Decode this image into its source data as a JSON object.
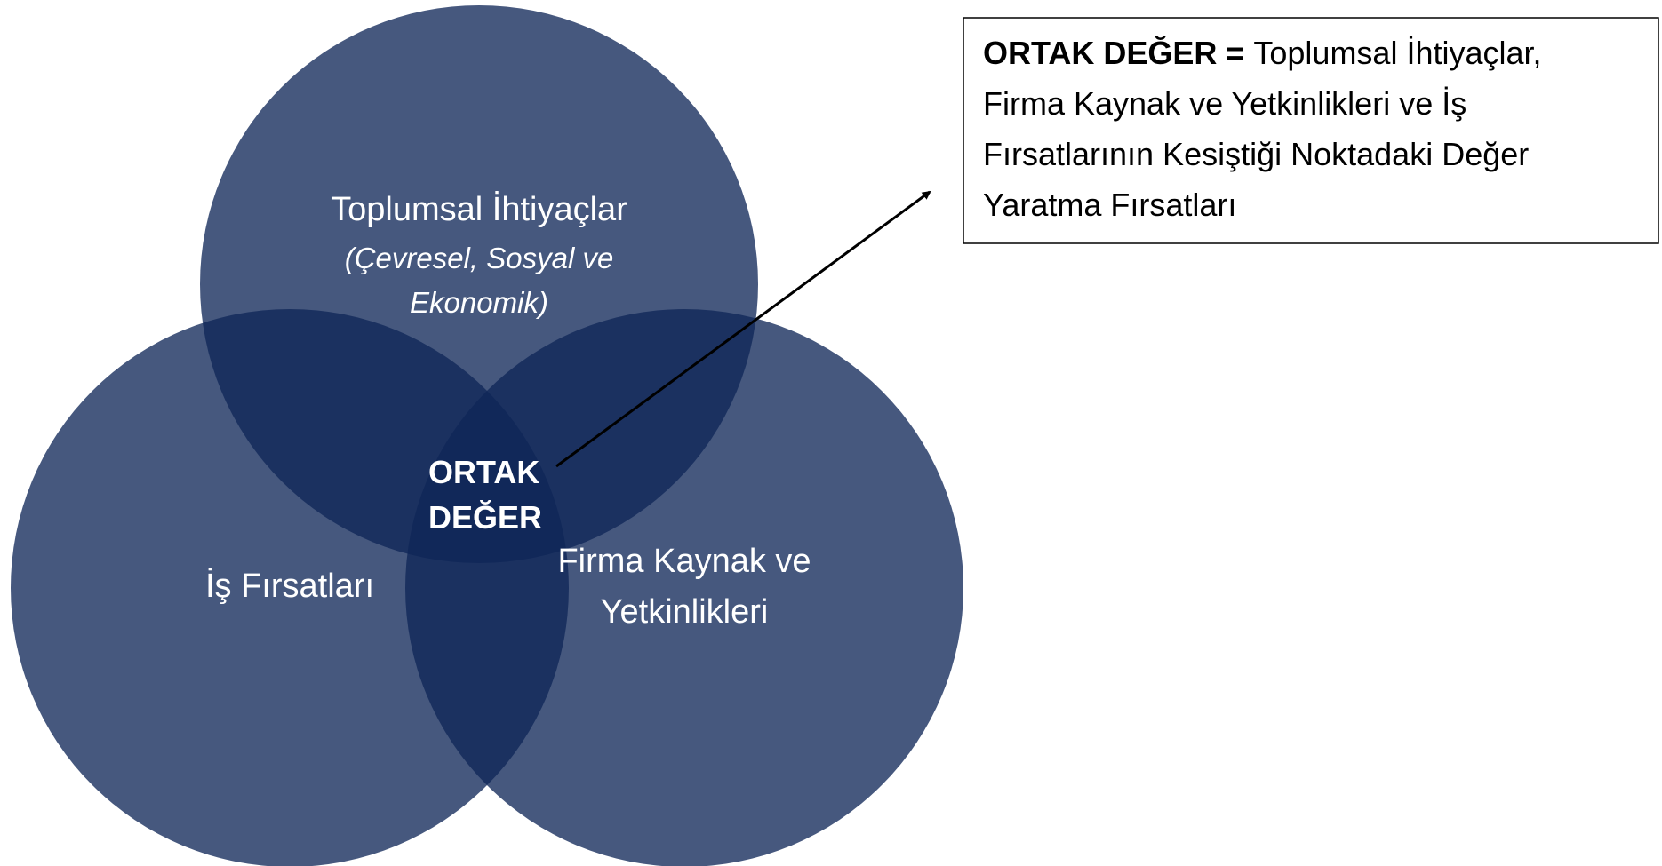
{
  "circles": {
    "top": {
      "label": "Toplumsal İhtiyaçlar",
      "sub": [
        "(Çevresel, Sosyal ve",
        "Ekonomik)"
      ]
    },
    "left": {
      "label": "İş Fırsatları"
    },
    "right": {
      "label": [
        "Firma Kaynak ve",
        "Yetkinlikleri"
      ]
    }
  },
  "center": [
    "ORTAK",
    "DEĞER"
  ],
  "box": {
    "term": "ORTAK DEĞER =",
    "lines": [
      "Toplumsal İhtiyaçlar,",
      "Firma Kaynak ve Yetkinlikleri ve İş",
      "Fırsatlarının Kesiştiği Noktadaki Değer",
      "Yaratma Fırsatları"
    ]
  }
}
